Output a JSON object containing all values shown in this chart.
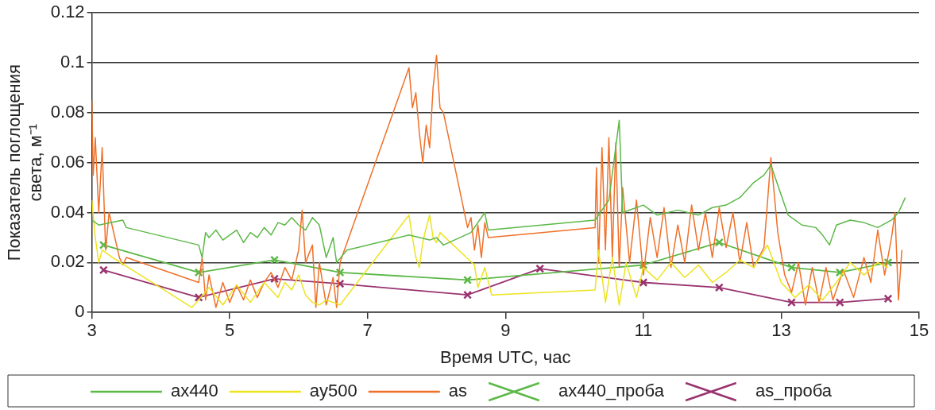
{
  "chart_data": {
    "type": "line",
    "xlabel": "Время UTC, час",
    "ylabel": "Показатель поглощения\nсвета, м⁻¹",
    "xlim": [
      3,
      15
    ],
    "xticks": [
      3,
      5,
      7,
      9,
      11,
      13,
      15
    ],
    "ylim": [
      0,
      0.12
    ],
    "yticks": [
      0,
      0.02,
      0.04,
      0.06,
      0.08,
      0.1,
      0.12
    ],
    "grid": "y",
    "legend": "bottom",
    "line_style": "solid",
    "series": [
      {
        "name": "ax440",
        "color": "#5cb847",
        "marker": "none",
        "x": [
          3.0,
          3.1,
          3.45,
          3.5,
          4.55,
          4.6,
          4.65,
          4.7,
          4.8,
          4.9,
          5.0,
          5.1,
          5.2,
          5.3,
          5.4,
          5.5,
          5.6,
          5.7,
          5.8,
          5.9,
          6.0,
          6.1,
          6.2,
          6.3,
          6.4,
          6.5,
          6.55,
          6.7,
          7.6,
          7.9,
          8.0,
          8.1,
          8.5,
          8.7,
          8.75,
          10.3,
          10.5,
          10.65,
          10.7,
          11.0,
          11.2,
          11.5,
          11.8,
          12.0,
          12.2,
          12.4,
          12.6,
          12.75,
          12.85,
          13.0,
          13.1,
          13.3,
          13.5,
          13.6,
          13.7,
          13.8,
          14.0,
          14.2,
          14.4,
          14.6,
          14.7,
          14.8
        ],
        "values": [
          0.037,
          0.035,
          0.037,
          0.034,
          0.027,
          0.022,
          0.032,
          0.03,
          0.033,
          0.029,
          0.031,
          0.033,
          0.028,
          0.032,
          0.03,
          0.034,
          0.031,
          0.036,
          0.035,
          0.038,
          0.035,
          0.033,
          0.038,
          0.035,
          0.022,
          0.03,
          0.02,
          0.025,
          0.031,
          0.029,
          0.03,
          0.027,
          0.032,
          0.04,
          0.033,
          0.037,
          0.045,
          0.077,
          0.04,
          0.043,
          0.039,
          0.041,
          0.039,
          0.042,
          0.043,
          0.046,
          0.052,
          0.055,
          0.059,
          0.047,
          0.039,
          0.035,
          0.034,
          0.031,
          0.027,
          0.035,
          0.037,
          0.036,
          0.034,
          0.037,
          0.04,
          0.046
        ]
      },
      {
        "name": "ay500",
        "color": "#ede31f",
        "marker": "none",
        "x": [
          3.0,
          3.05,
          3.1,
          3.15,
          3.3,
          4.45,
          4.55,
          4.7,
          4.9,
          5.1,
          5.3,
          5.5,
          5.7,
          5.8,
          5.9,
          6.0,
          6.1,
          6.2,
          6.3,
          6.4,
          6.5,
          6.6,
          7.6,
          7.65,
          7.7,
          7.75,
          7.8,
          7.85,
          7.9,
          7.95,
          8.0,
          8.05,
          8.55,
          8.6,
          8.7,
          8.8,
          10.3,
          10.35,
          10.45,
          10.55,
          10.65,
          10.75,
          10.9,
          11.0,
          11.2,
          11.4,
          11.6,
          11.8,
          12.0,
          12.2,
          12.4,
          12.6,
          12.8,
          13.0,
          13.2,
          13.4,
          13.6,
          13.8,
          14.0,
          14.2,
          14.4,
          14.55
        ],
        "values": [
          0.045,
          0.03,
          0.02,
          0.025,
          0.022,
          0.002,
          0.005,
          0.01,
          0.003,
          0.011,
          0.004,
          0.012,
          0.006,
          0.012,
          0.009,
          0.015,
          0.007,
          0.004,
          0.003,
          0.005,
          0.004,
          0.003,
          0.039,
          0.03,
          0.022,
          0.018,
          0.028,
          0.034,
          0.039,
          0.03,
          0.028,
          0.032,
          0.019,
          0.01,
          0.018,
          0.007,
          0.009,
          0.025,
          0.004,
          0.022,
          0.003,
          0.02,
          0.006,
          0.018,
          0.013,
          0.02,
          0.014,
          0.019,
          0.012,
          0.016,
          0.021,
          0.018,
          0.027,
          0.012,
          0.006,
          0.011,
          0.005,
          0.012,
          0.02,
          0.015,
          0.02,
          0.018
        ]
      },
      {
        "name": "as",
        "color": "#f07028",
        "marker": "none",
        "x": [
          3.0,
          3.02,
          3.05,
          3.1,
          3.15,
          3.2,
          3.25,
          3.4,
          3.45,
          3.5,
          4.55,
          4.6,
          4.65,
          4.7,
          4.8,
          4.9,
          5.0,
          5.1,
          5.2,
          5.3,
          5.4,
          5.5,
          5.6,
          5.7,
          5.8,
          5.9,
          6.0,
          6.05,
          6.1,
          6.2,
          6.25,
          6.3,
          6.4,
          6.5,
          6.55,
          6.6,
          7.6,
          7.65,
          7.7,
          7.75,
          7.8,
          7.85,
          7.9,
          7.95,
          8.0,
          8.05,
          8.1,
          8.45,
          8.5,
          8.55,
          8.6,
          8.65,
          8.7,
          8.75,
          10.3,
          10.32,
          10.35,
          10.4,
          10.45,
          10.5,
          10.55,
          10.6,
          10.65,
          10.7,
          10.8,
          10.9,
          11.0,
          11.1,
          11.2,
          11.3,
          11.4,
          11.5,
          11.6,
          11.7,
          11.8,
          11.9,
          12.0,
          12.1,
          12.2,
          12.3,
          12.4,
          12.5,
          12.6,
          12.75,
          12.85,
          12.95,
          13.05,
          13.15,
          13.25,
          13.35,
          13.45,
          13.55,
          13.65,
          13.75,
          13.9,
          14.05,
          14.2,
          14.3,
          14.4,
          14.5,
          14.6,
          14.65,
          14.7,
          14.75
        ],
        "values": [
          0.085,
          0.055,
          0.07,
          0.04,
          0.066,
          0.025,
          0.04,
          0.022,
          0.019,
          0.022,
          0.012,
          0.022,
          0.005,
          0.015,
          0.002,
          0.012,
          0.004,
          0.011,
          0.005,
          0.013,
          0.006,
          0.012,
          0.016,
          0.01,
          0.018,
          0.013,
          0.025,
          0.041,
          0.02,
          0.027,
          0.002,
          0.02,
          0.003,
          0.014,
          0.002,
          0.02,
          0.098,
          0.082,
          0.088,
          0.072,
          0.06,
          0.075,
          0.066,
          0.09,
          0.103,
          0.082,
          0.08,
          0.034,
          0.038,
          0.025,
          0.035,
          0.022,
          0.036,
          0.03,
          0.034,
          0.058,
          0.02,
          0.066,
          0.025,
          0.07,
          0.022,
          0.068,
          0.018,
          0.05,
          0.02,
          0.045,
          0.015,
          0.038,
          0.022,
          0.042,
          0.018,
          0.035,
          0.02,
          0.043,
          0.025,
          0.04,
          0.022,
          0.042,
          0.026,
          0.04,
          0.02,
          0.036,
          0.018,
          0.026,
          0.062,
          0.032,
          0.015,
          0.008,
          0.02,
          0.003,
          0.018,
          0.004,
          0.018,
          0.005,
          0.017,
          0.006,
          0.022,
          0.012,
          0.033,
          0.015,
          0.03,
          0.04,
          0.005,
          0.025
        ]
      },
      {
        "name": "ax440_проба",
        "color": "#5cb847",
        "marker": "cross",
        "x": [
          3.17,
          4.55,
          5.65,
          6.6,
          8.45,
          11.0,
          12.1,
          13.15,
          13.85,
          14.55
        ],
        "values": [
          0.027,
          0.016,
          0.021,
          0.016,
          0.013,
          0.019,
          0.028,
          0.018,
          0.016,
          0.02
        ]
      },
      {
        "name": "as_проба",
        "color": "#993370",
        "marker": "cross",
        "x": [
          3.17,
          4.55,
          5.65,
          6.6,
          8.45,
          9.5,
          11.0,
          12.1,
          13.15,
          13.85,
          14.55
        ],
        "values": [
          0.017,
          0.006,
          0.0135,
          0.0115,
          0.007,
          0.0175,
          0.012,
          0.01,
          0.004,
          0.004,
          0.0055
        ]
      }
    ]
  }
}
